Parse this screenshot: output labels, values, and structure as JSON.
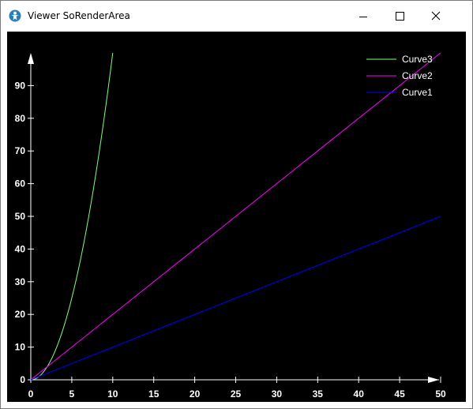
{
  "window": {
    "title": "Viewer SoRenderArea",
    "icon": "viewer-app-icon",
    "controls": [
      "minimize-icon",
      "maximize-icon",
      "close-icon"
    ]
  },
  "chart_data": {
    "type": "line",
    "title": "",
    "xlabel": "",
    "ylabel": "",
    "xlim": [
      0,
      50
    ],
    "ylim": [
      0,
      100
    ],
    "x_ticks": [
      0,
      5,
      10,
      15,
      20,
      25,
      30,
      35,
      40,
      45,
      50
    ],
    "y_ticks": [
      0,
      10,
      20,
      30,
      40,
      50,
      60,
      70,
      80,
      90
    ],
    "grid": false,
    "legend_position": "top-right",
    "background": "#000000",
    "axis_color": "#ffffff",
    "series": [
      {
        "name": "Curve3",
        "color": "#7fff7f",
        "x": [
          0,
          1,
          2,
          3,
          4,
          5,
          6,
          7,
          8,
          9,
          10
        ],
        "y": [
          0,
          1,
          4,
          9,
          16,
          25,
          36,
          49,
          64,
          81,
          100
        ]
      },
      {
        "name": "Curve2",
        "color": "#ff00ff",
        "x": [
          0,
          50
        ],
        "y": [
          0,
          100
        ]
      },
      {
        "name": "Curve1",
        "color": "#0000ff",
        "x": [
          0,
          50
        ],
        "y": [
          0,
          50
        ]
      }
    ]
  }
}
